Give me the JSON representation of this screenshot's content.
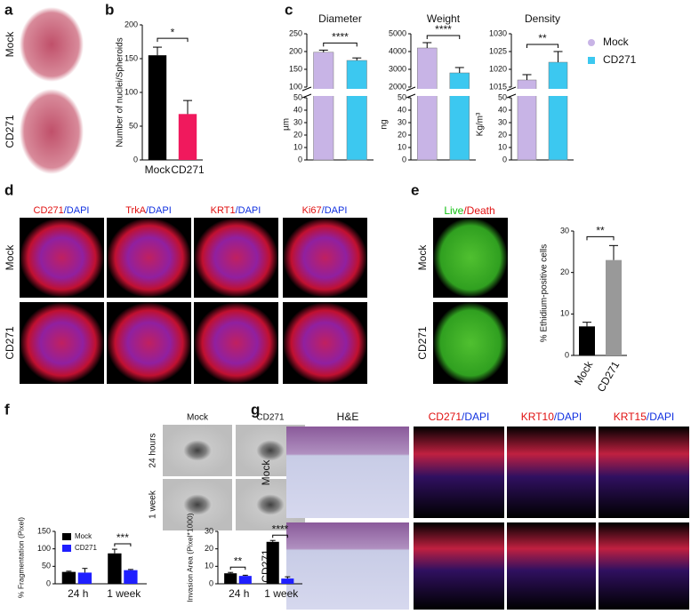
{
  "panel_labels": [
    "a",
    "b",
    "c",
    "d",
    "e",
    "f",
    "g"
  ],
  "a": {
    "rows": [
      "Mock",
      "CD271"
    ]
  },
  "d": {
    "columns": [
      [
        "CD271",
        "/DAPI"
      ],
      [
        "TrkA",
        "/DAPI"
      ],
      [
        "KRT1",
        "/DAPI"
      ],
      [
        "Ki67",
        "/DAPI"
      ]
    ],
    "rows": [
      "Mock",
      "CD271"
    ]
  },
  "e": {
    "header": [
      "Live",
      "/Death"
    ],
    "rows": [
      "Mock",
      "CD271"
    ]
  },
  "f": {
    "columns": [
      "Mock",
      "CD271"
    ],
    "rows": [
      "24 hours",
      "1 week"
    ]
  },
  "g": {
    "columns": [
      [
        "H&E"
      ],
      [
        "CD271",
        "/DAPI"
      ],
      [
        "KRT10",
        "/DAPI"
      ],
      [
        "KRT15",
        "/DAPI"
      ]
    ],
    "rows": [
      "Mock",
      "CD271"
    ]
  },
  "c_legend": [
    {
      "name": "Mock",
      "color": "#c8b4e6"
    },
    {
      "name": "CD271",
      "color": "#3cc8f0"
    }
  ],
  "chart_data": [
    {
      "type": "bar",
      "categories": [
        "Mock",
        "CD271"
      ],
      "values": [
        155,
        68
      ],
      "errors": [
        12,
        20
      ],
      "colors": [
        "#000000",
        "#f0195d"
      ],
      "ylabel": "Number of nuclei/Spheroids",
      "ylim": [
        0,
        200
      ],
      "yticks": [
        0,
        50,
        100,
        150,
        200
      ],
      "annotation": "*"
    },
    {
      "type": "broken-bar",
      "title": "Diameter",
      "ylabel": "µm",
      "values": [
        198,
        175
      ],
      "errors": [
        6,
        7
      ],
      "colors": [
        "#c8b4e6",
        "#3cc8f0"
      ],
      "ylim": [
        100,
        250
      ],
      "yticks": [
        100,
        150,
        200,
        250
      ],
      "ylim_lower": [
        0,
        50
      ],
      "yticks_lower": [
        0,
        10,
        20,
        30,
        40,
        50
      ],
      "annotation": "****"
    },
    {
      "type": "broken-bar",
      "title": "Weight",
      "ylabel": "ng",
      "values": [
        4200,
        2800
      ],
      "errors": [
        300,
        300
      ],
      "colors": [
        "#c8b4e6",
        "#3cc8f0"
      ],
      "ylim": [
        2000,
        5000
      ],
      "yticks": [
        2000,
        3000,
        4000,
        5000
      ],
      "ylim_lower": [
        0,
        50
      ],
      "yticks_lower": [
        0,
        10,
        20,
        30,
        40,
        50
      ],
      "annotation": "****"
    },
    {
      "type": "broken-bar",
      "title": "Density",
      "ylabel": "Kg/m³",
      "values": [
        1017,
        1022
      ],
      "errors": [
        1.5,
        3
      ],
      "colors": [
        "#c8b4e6",
        "#3cc8f0"
      ],
      "ylim": [
        1015,
        1030
      ],
      "yticks": [
        1015,
        1020,
        1025,
        1030
      ],
      "ylim_lower": [
        0,
        50
      ],
      "yticks_lower": [
        0,
        10,
        20,
        30,
        40,
        50
      ],
      "annotation": "**"
    },
    {
      "type": "bar",
      "categories": [
        "Mock",
        "CD271"
      ],
      "values": [
        7,
        23
      ],
      "errors": [
        1,
        3.5
      ],
      "colors": [
        "#000000",
        "#999999"
      ],
      "ylabel": "% Ethidium-positive cells",
      "ylim": [
        0,
        30
      ],
      "yticks": [
        0,
        10,
        20,
        30
      ],
      "annotation": "**"
    },
    {
      "type": "grouped-bar",
      "categories": [
        "24 h",
        "1 week"
      ],
      "series": [
        {
          "name": "Mock",
          "color": "#000000",
          "values": [
            34,
            87
          ],
          "errors": [
            2,
            12
          ]
        },
        {
          "name": "CD271",
          "color": "#1f1fff",
          "values": [
            32,
            39
          ],
          "errors": [
            12,
            2
          ]
        }
      ],
      "ylabel": "% Fragmentation (Pixel)",
      "ylim": [
        0,
        150
      ],
      "yticks": [
        0,
        50,
        100,
        150
      ],
      "annotations": [
        null,
        "***"
      ]
    },
    {
      "type": "grouped-bar",
      "categories": [
        "24 h",
        "1 week"
      ],
      "series": [
        {
          "name": "Mock",
          "color": "#000000",
          "values": [
            6,
            24
          ],
          "errors": [
            0.5,
            0.8
          ]
        },
        {
          "name": "CD271",
          "color": "#1f1fff",
          "values": [
            4.5,
            3
          ],
          "errors": [
            0.4,
            1
          ]
        }
      ],
      "ylabel": "Invasion Area (Pixel*1000)",
      "ylim": [
        0,
        30
      ],
      "yticks": [
        0,
        10,
        20,
        30
      ],
      "annotations": [
        "**",
        "****"
      ]
    }
  ]
}
